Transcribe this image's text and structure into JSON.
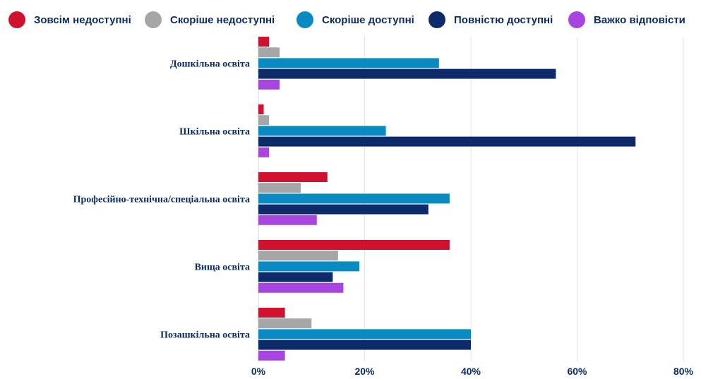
{
  "chart_data": {
    "type": "bar",
    "orientation": "horizontal",
    "categories": [
      "Дошкільна освіта",
      "Шкільна освіта",
      "Професійно-технічна/спеціальна освіта",
      "Вища освіта",
      "Позашкільна освіта"
    ],
    "series": [
      {
        "name": "Зовсім недоступні",
        "color": "#d0122f",
        "values": [
          2,
          1,
          13,
          36,
          5
        ]
      },
      {
        "name": "Скоріше недоступні",
        "color": "#a6a6a6",
        "values": [
          4,
          2,
          8,
          15,
          10
        ]
      },
      {
        "name": "Скоріше доступні",
        "color": "#0a8ac2",
        "values": [
          34,
          24,
          36,
          19,
          40
        ]
      },
      {
        "name": "Повністю доступні",
        "color": "#0d2b6b",
        "values": [
          56,
          71,
          32,
          14,
          40
        ]
      },
      {
        "name": "Важко відповісти",
        "color": "#a845e0",
        "values": [
          4,
          2,
          11,
          16,
          5
        ]
      }
    ],
    "xticks": [
      "0%",
      "20%",
      "40%",
      "60%",
      "80%"
    ],
    "xlim": [
      0,
      80
    ],
    "grid": true,
    "legend_position": "top"
  }
}
